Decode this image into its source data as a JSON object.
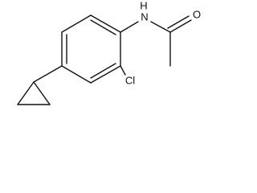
{
  "atoms": {
    "amine_h": "H",
    "amine_n": "N",
    "oxygen": "O",
    "chlorine": "Cl"
  }
}
